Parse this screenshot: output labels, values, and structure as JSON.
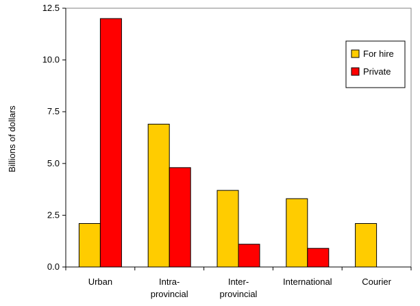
{
  "chart_data": {
    "type": "bar",
    "title": "",
    "xlabel": "",
    "ylabel": "Billions of dollars",
    "ylim": [
      0,
      12.5
    ],
    "yticks": [
      0,
      2.5,
      5,
      7.5,
      10,
      12.5
    ],
    "ytick_labels": [
      "0.0",
      "2.5",
      "5.0",
      "7.5",
      "10.0",
      "12.5"
    ],
    "categories": [
      "Urban",
      "Intra-\nprovincial",
      "Inter-\nprovincial",
      "International",
      "Courier"
    ],
    "series": [
      {
        "name": "For hire",
        "color": "#ffcc00",
        "values": [
          2.1,
          6.9,
          3.7,
          3.3,
          2.1
        ]
      },
      {
        "name": "Private",
        "color": "#ff0000",
        "values": [
          12.0,
          4.8,
          1.1,
          0.9,
          null
        ]
      }
    ],
    "grid": false,
    "legend_position": "top-right"
  }
}
